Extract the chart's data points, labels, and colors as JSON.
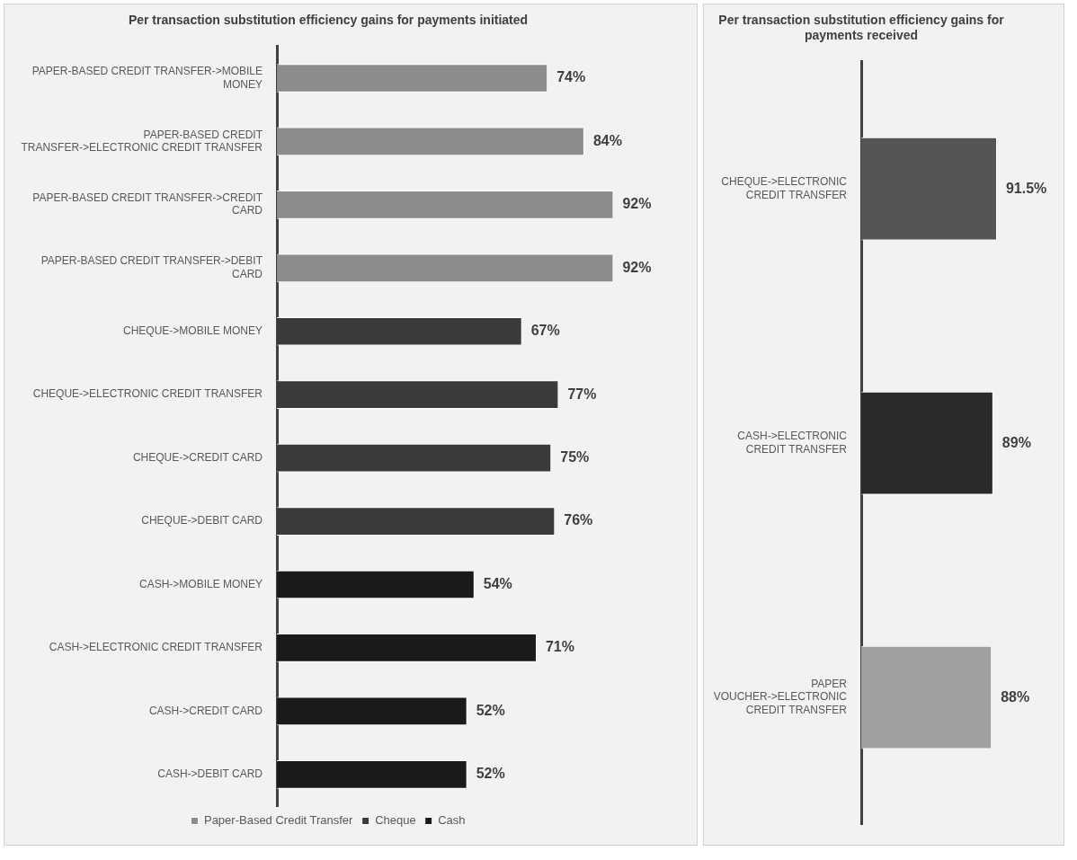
{
  "chart_data": [
    {
      "type": "bar",
      "orientation": "horizontal",
      "stacked": true,
      "title": "Per transaction substitution efficiency gains for payments initiated",
      "legend": "bottom",
      "tick_labels": "y",
      "categories": [
        "PAPER-BASED CREDIT TRANSFER->MOBILE MONEY",
        "PAPER-BASED CREDIT TRANSFER->ELECTRONIC CREDIT TRANSFER",
        "PAPER-BASED CREDIT TRANSFER->CREDIT CARD",
        "PAPER-BASED CREDIT TRANSFER->DEBIT CARD",
        "CHEQUE->MOBILE MONEY",
        "CHEQUE->ELECTRONIC CREDIT TRANSFER",
        "CHEQUE->CREDIT CARD",
        "CHEQUE->DEBIT CARD",
        "CASH->MOBILE MONEY",
        "CASH->ELECTRONIC CREDIT TRANSFER",
        "CASH->CREDIT CARD",
        "CASH->DEBIT CARD"
      ],
      "series": [
        {
          "name": "Paper-Based Credit Transfer",
          "color": "#8c8c8c",
          "values": [
            74,
            84,
            92,
            92,
            null,
            null,
            null,
            null,
            null,
            null,
            null,
            null
          ],
          "value_labels": [
            "74%",
            "84%",
            "92%",
            "92%",
            null,
            null,
            null,
            null,
            null,
            null,
            null,
            null
          ]
        },
        {
          "name": "Cheque",
          "color": "#3a3a3a",
          "values": [
            null,
            null,
            null,
            null,
            67,
            77,
            75,
            76,
            null,
            null,
            null,
            null
          ],
          "value_labels": [
            null,
            null,
            null,
            null,
            "67%",
            "77%",
            "75%",
            "76%",
            null,
            null,
            null,
            null
          ]
        },
        {
          "name": "Cash",
          "color": "#1a1a1a",
          "values": [
            null,
            null,
            null,
            null,
            null,
            null,
            null,
            null,
            54,
            71,
            52,
            52
          ],
          "value_labels": [
            null,
            null,
            null,
            null,
            null,
            null,
            null,
            null,
            "54%",
            "71%",
            "52%",
            "52%"
          ]
        }
      ]
    },
    {
      "type": "bar",
      "orientation": "horizontal",
      "title": "Per transaction substitution efficiency gains for payments received",
      "tick_labels": "y",
      "categories": [
        "CHEQUE->ELECTRONIC CREDIT TRANSFER",
        "CASH->ELECTRONIC CREDIT TRANSFER",
        "PAPER VOUCHER->ELECTRONIC CREDIT TRANSFER"
      ],
      "values": [
        91.5,
        89,
        88
      ],
      "colors": [
        "#555555",
        "#2a2a2a",
        "#a0a0a0"
      ],
      "value_labels": [
        "91.5%",
        "89%",
        "88%"
      ]
    }
  ]
}
